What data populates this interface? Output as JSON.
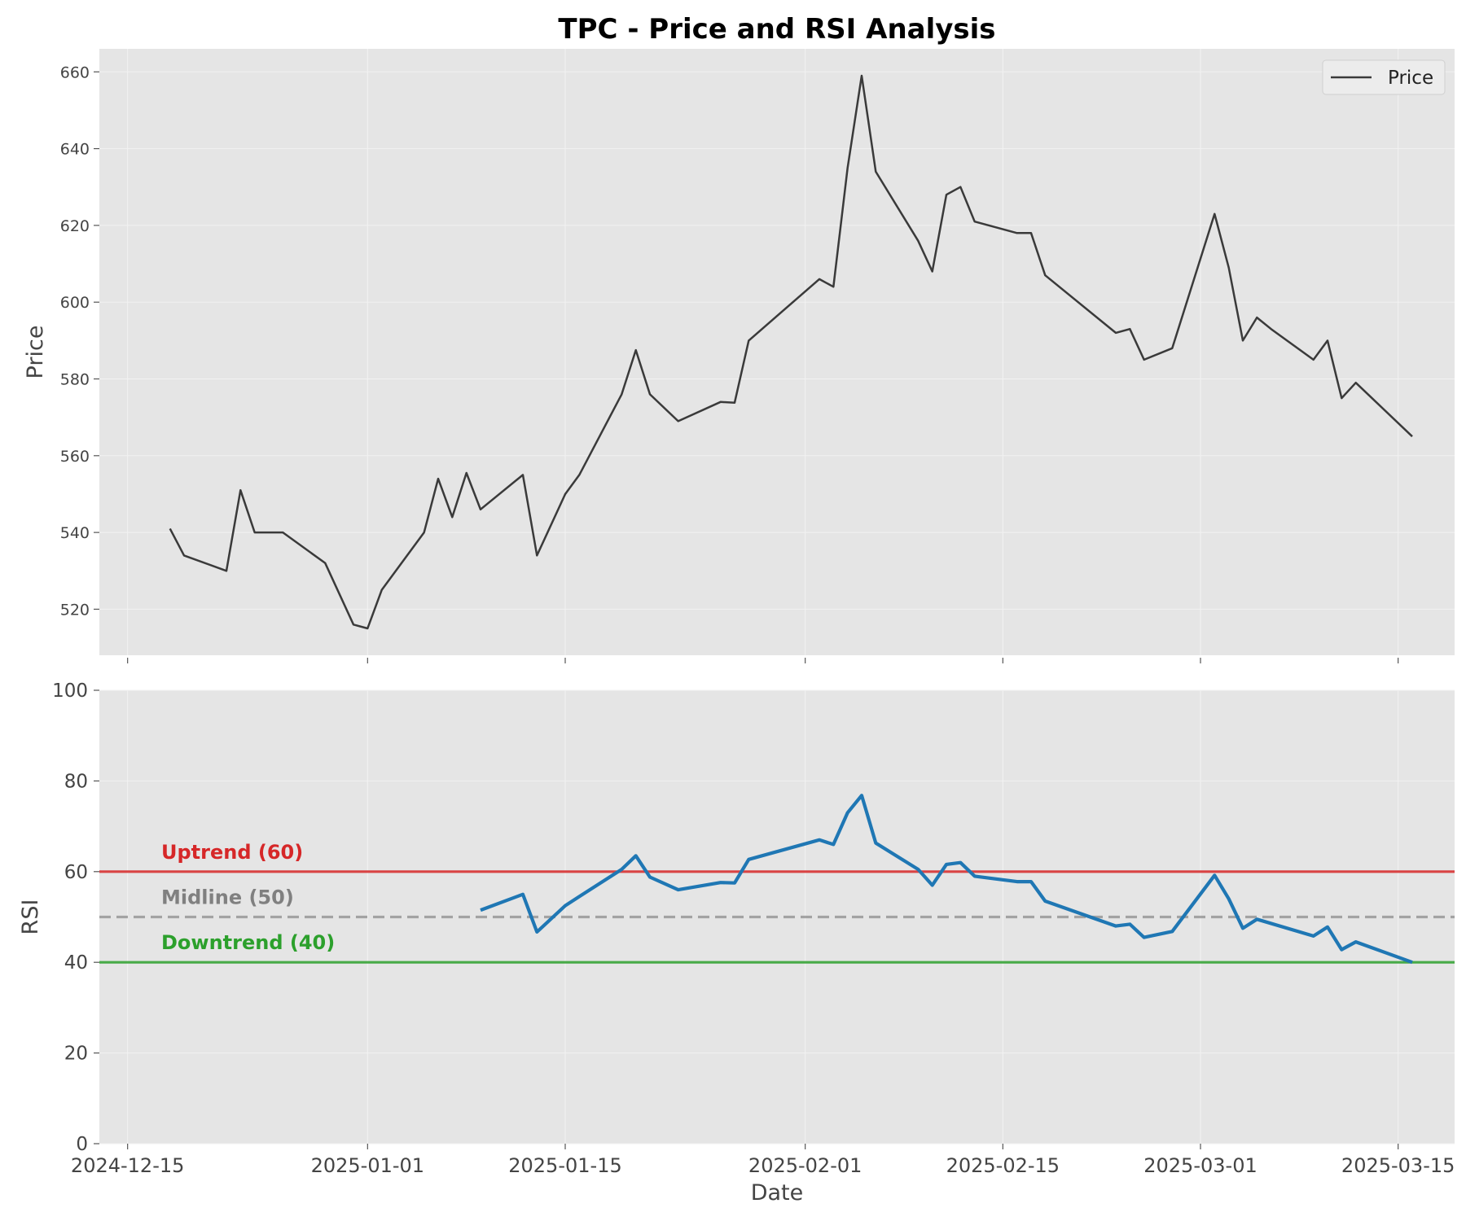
{
  "chart_data": [
    {
      "type": "line",
      "title": "TPC - Price and RSI Analysis",
      "ylabel": "Price",
      "ylim": [
        508,
        666
      ],
      "yticks": [
        520,
        540,
        560,
        580,
        600,
        620,
        640,
        660
      ],
      "grid": true,
      "legend": {
        "placement": "top-right",
        "entries": [
          "Price"
        ]
      },
      "series": [
        {
          "name": "Price",
          "color": "#3a3a3a",
          "points": [
            [
              "2024-12-18",
              541
            ],
            [
              "2024-12-19",
              534
            ],
            [
              "2024-12-22",
              530
            ],
            [
              "2024-12-23",
              551
            ],
            [
              "2024-12-24",
              540
            ],
            [
              "2024-12-26",
              540
            ],
            [
              "2024-12-29",
              532
            ],
            [
              "2024-12-31",
              516
            ],
            [
              "2025-01-01",
              515
            ],
            [
              "2025-01-02",
              525
            ],
            [
              "2025-01-05",
              540
            ],
            [
              "2025-01-06",
              554
            ],
            [
              "2025-01-07",
              544
            ],
            [
              "2025-01-08",
              555.5
            ],
            [
              "2025-01-09",
              546
            ],
            [
              "2025-01-12",
              555
            ],
            [
              "2025-01-13",
              534
            ],
            [
              "2025-01-15",
              550
            ],
            [
              "2025-01-16",
              555
            ],
            [
              "2025-01-19",
              576
            ],
            [
              "2025-01-20",
              587.5
            ],
            [
              "2025-01-21",
              576
            ],
            [
              "2025-01-23",
              569
            ],
            [
              "2025-01-26",
              574
            ],
            [
              "2025-01-27",
              573.8
            ],
            [
              "2025-01-28",
              590
            ],
            [
              "2025-02-02",
              606
            ],
            [
              "2025-02-03",
              604
            ],
            [
              "2025-02-04",
              635
            ],
            [
              "2025-02-05",
              659
            ],
            [
              "2025-02-06",
              634
            ],
            [
              "2025-02-09",
              616
            ],
            [
              "2025-02-10",
              608
            ],
            [
              "2025-02-11",
              628
            ],
            [
              "2025-02-12",
              630
            ],
            [
              "2025-02-13",
              621
            ],
            [
              "2025-02-16",
              618
            ],
            [
              "2025-02-17",
              618
            ],
            [
              "2025-02-18",
              607
            ],
            [
              "2025-02-23",
              592
            ],
            [
              "2025-02-24",
              593
            ],
            [
              "2025-02-25",
              585
            ],
            [
              "2025-02-27",
              588
            ],
            [
              "2025-03-02",
              623
            ],
            [
              "2025-03-03",
              609
            ],
            [
              "2025-03-04",
              590
            ],
            [
              "2025-03-05",
              596
            ],
            [
              "2025-03-06",
              593
            ],
            [
              "2025-03-09",
              585
            ],
            [
              "2025-03-10",
              590
            ],
            [
              "2025-03-11",
              575
            ],
            [
              "2025-03-12",
              579
            ],
            [
              "2025-03-16",
              565
            ]
          ]
        }
      ]
    },
    {
      "type": "line",
      "xlabel": "Date",
      "ylabel": "RSI",
      "ylim": [
        0,
        100
      ],
      "yticks": [
        0,
        20,
        40,
        60,
        80,
        100
      ],
      "xlim": [
        "2024-12-13",
        "2025-03-19"
      ],
      "xticks": [
        "2024-12-15",
        "2025-01-01",
        "2025-01-15",
        "2025-02-01",
        "2025-02-15",
        "2025-03-01",
        "2025-03-15"
      ],
      "grid": true,
      "series": [
        {
          "color": "#1f77b4",
          "points": [
            [
              "2025-01-09",
              51.5
            ],
            [
              "2025-01-12",
              55
            ],
            [
              "2025-01-13",
              46.7
            ],
            [
              "2025-01-15",
              52.5
            ],
            [
              "2025-01-16",
              54.5
            ],
            [
              "2025-01-19",
              60.5
            ],
            [
              "2025-01-20",
              63.5
            ],
            [
              "2025-01-21",
              58.8
            ],
            [
              "2025-01-23",
              56
            ],
            [
              "2025-01-26",
              57.6
            ],
            [
              "2025-01-27",
              57.5
            ],
            [
              "2025-01-28",
              62.7
            ],
            [
              "2025-02-02",
              67
            ],
            [
              "2025-02-03",
              66
            ],
            [
              "2025-02-04",
              73
            ],
            [
              "2025-02-05",
              76.8
            ],
            [
              "2025-02-06",
              66.3
            ],
            [
              "2025-02-09",
              60.5
            ],
            [
              "2025-02-10",
              57
            ],
            [
              "2025-02-11",
              61.6
            ],
            [
              "2025-02-12",
              62
            ],
            [
              "2025-02-13",
              59
            ],
            [
              "2025-02-16",
              57.8
            ],
            [
              "2025-02-17",
              57.8
            ],
            [
              "2025-02-18",
              53.5
            ],
            [
              "2025-02-23",
              48
            ],
            [
              "2025-02-24",
              48.4
            ],
            [
              "2025-02-25",
              45.5
            ],
            [
              "2025-02-27",
              46.8
            ],
            [
              "2025-03-02",
              59.2
            ],
            [
              "2025-03-03",
              54
            ],
            [
              "2025-03-04",
              47.5
            ],
            [
              "2025-03-05",
              49.5
            ],
            [
              "2025-03-09",
              45.8
            ],
            [
              "2025-03-10",
              47.8
            ],
            [
              "2025-03-11",
              42.8
            ],
            [
              "2025-03-12",
              44.5
            ],
            [
              "2025-03-16",
              40
            ]
          ]
        }
      ],
      "reference_lines": [
        {
          "label": "Uptrend (60)",
          "value": 60,
          "color": "#d62728",
          "style": "solid"
        },
        {
          "label": "Midline (50)",
          "value": 50,
          "color": "#808080",
          "style": "dashed"
        },
        {
          "label": "Downtrend (40)",
          "value": 40,
          "color": "#2ca02c",
          "style": "solid"
        }
      ]
    }
  ]
}
